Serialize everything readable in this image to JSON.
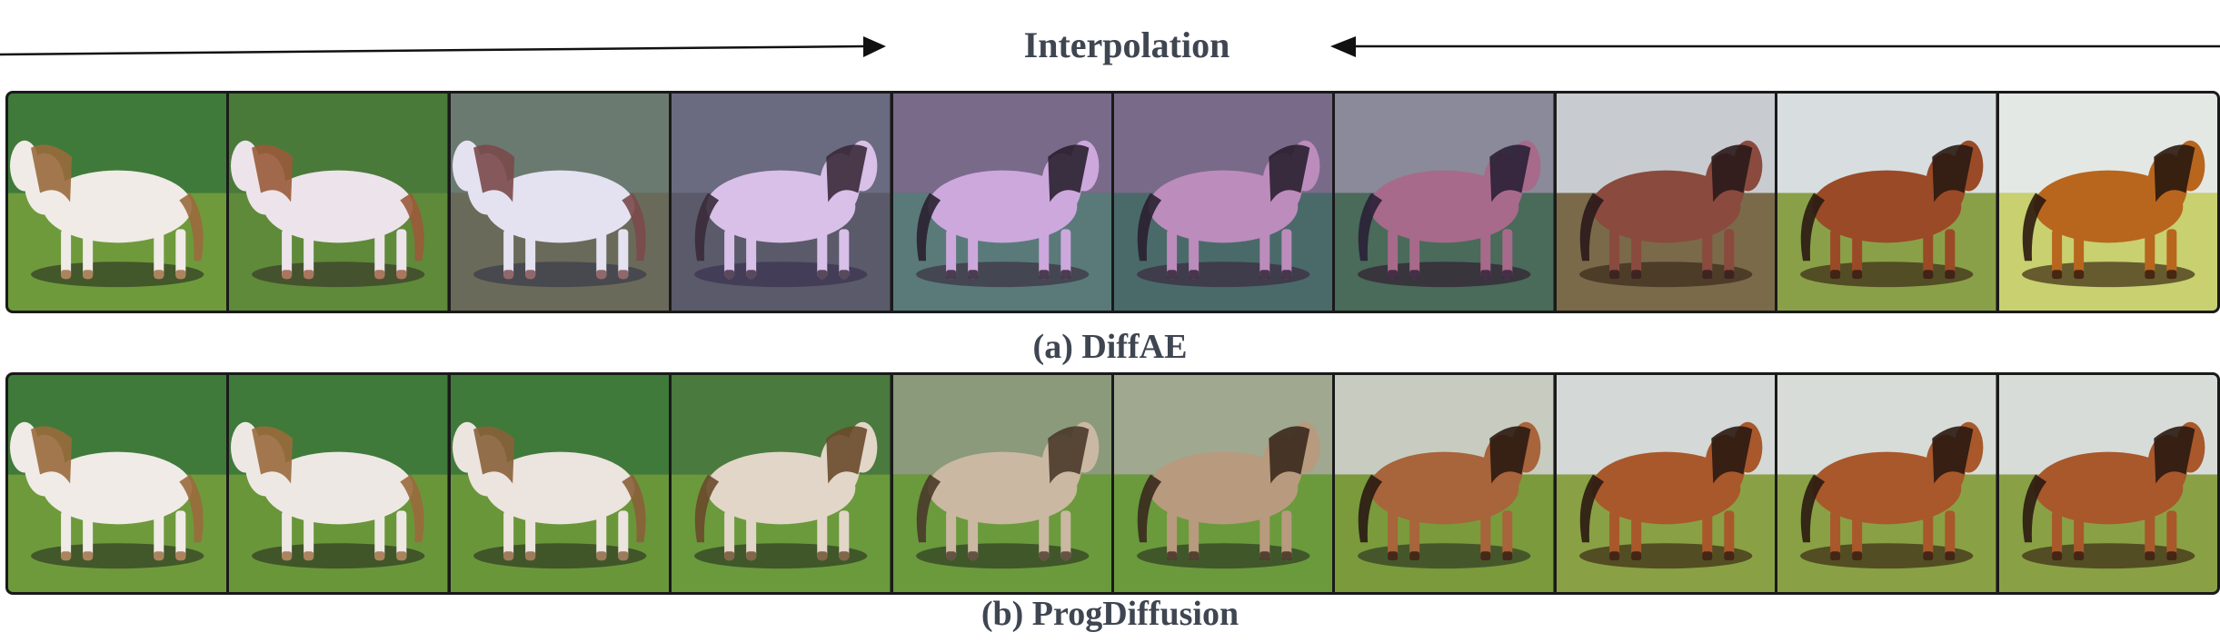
{
  "header": {
    "title": "Interpolation"
  },
  "rows": [
    {
      "caption": "(a) DiffAE",
      "frames": [
        {
          "sky": "#3f7a3a",
          "ground": "#6e9a3c",
          "horse": "#f0ebe6",
          "mane": "#9a6a3c",
          "shadow": "#2f3a22"
        },
        {
          "sky": "#4a7a3a",
          "ground": "#5f8a3a",
          "horse": "#ece4ea",
          "mane": "#9a5a3a",
          "shadow": "#3a3a2a"
        },
        {
          "sky": "#6a7a70",
          "ground": "#6a6a5a",
          "horse": "#e4e2f0",
          "mane": "#7a4a4a",
          "shadow": "#3a3a4a"
        },
        {
          "sky": "#6a6a80",
          "ground": "#5a5a6a",
          "horse": "#d8c0e8",
          "mane": "#3a2a3a",
          "shadow": "#3a3050"
        },
        {
          "sky": "#7a6a8a",
          "ground": "#5a7a7a",
          "horse": "#cca8dc",
          "mane": "#2a2030",
          "shadow": "#3a3040"
        },
        {
          "sky": "#7a6a8a",
          "ground": "#4a6a6a",
          "horse": "#bc8cbc",
          "mane": "#2a2030",
          "shadow": "#3a2a40"
        },
        {
          "sky": "#8a8a9a",
          "ground": "#4a6a5a",
          "horse": "#a86a8a",
          "mane": "#2a2036",
          "shadow": "#302030"
        },
        {
          "sky": "#c8ccd0",
          "ground": "#7a6a4a",
          "horse": "#8a4a3e",
          "mane": "#2a1a1a",
          "shadow": "#3a2a1a"
        },
        {
          "sky": "#d8dde0",
          "ground": "#8aa048",
          "horse": "#9a4a26",
          "mane": "#2a1a12",
          "shadow": "#3a2a16"
        },
        {
          "sky": "#e4e8e4",
          "ground": "#c8d070",
          "horse": "#b8661e",
          "mane": "#2a180e",
          "shadow": "#3a2a12"
        }
      ]
    },
    {
      "caption": "(b) ProgDiffusion",
      "frames": [
        {
          "sky": "#3f7a3a",
          "ground": "#6e9a3c",
          "horse": "#f0ebe6",
          "mane": "#9a6a3c",
          "shadow": "#2f3a22"
        },
        {
          "sky": "#3f7a3a",
          "ground": "#6a963a",
          "horse": "#eee8e4",
          "mane": "#9a6a3c",
          "shadow": "#2f3a22"
        },
        {
          "sky": "#3f7a3a",
          "ground": "#6a963a",
          "horse": "#ece4de",
          "mane": "#8a603a",
          "shadow": "#2f3a22"
        },
        {
          "sky": "#4a7a3e",
          "ground": "#6a9a3c",
          "horse": "#e2d6c8",
          "mane": "#6a4a2a",
          "shadow": "#2f3a22"
        },
        {
          "sky": "#8a9a7a",
          "ground": "#6a9a3c",
          "horse": "#cab8a2",
          "mane": "#4a3a2a",
          "shadow": "#2f3a22"
        },
        {
          "sky": "#a0a890",
          "ground": "#6a9a3c",
          "horse": "#b89a7e",
          "mane": "#3a2a1e",
          "shadow": "#2f3a22"
        },
        {
          "sky": "#c8ccc0",
          "ground": "#7a9a3c",
          "horse": "#a8643a",
          "mane": "#2a1a12",
          "shadow": "#2f3a22"
        },
        {
          "sky": "#d4d8d6",
          "ground": "#8aa044",
          "horse": "#a8582a",
          "mane": "#2a1a12",
          "shadow": "#3a2a16"
        },
        {
          "sky": "#d8dcd8",
          "ground": "#8aa044",
          "horse": "#a8582a",
          "mane": "#2a1a12",
          "shadow": "#3a2a16"
        },
        {
          "sky": "#d8dcd8",
          "ground": "#8aa044",
          "horse": "#a8582a",
          "mane": "#2a1a12",
          "shadow": "#3a2a16"
        }
      ]
    }
  ],
  "colors": {
    "text": "#3f4652",
    "arrow": "#111111",
    "border": "#1a1a1a"
  }
}
